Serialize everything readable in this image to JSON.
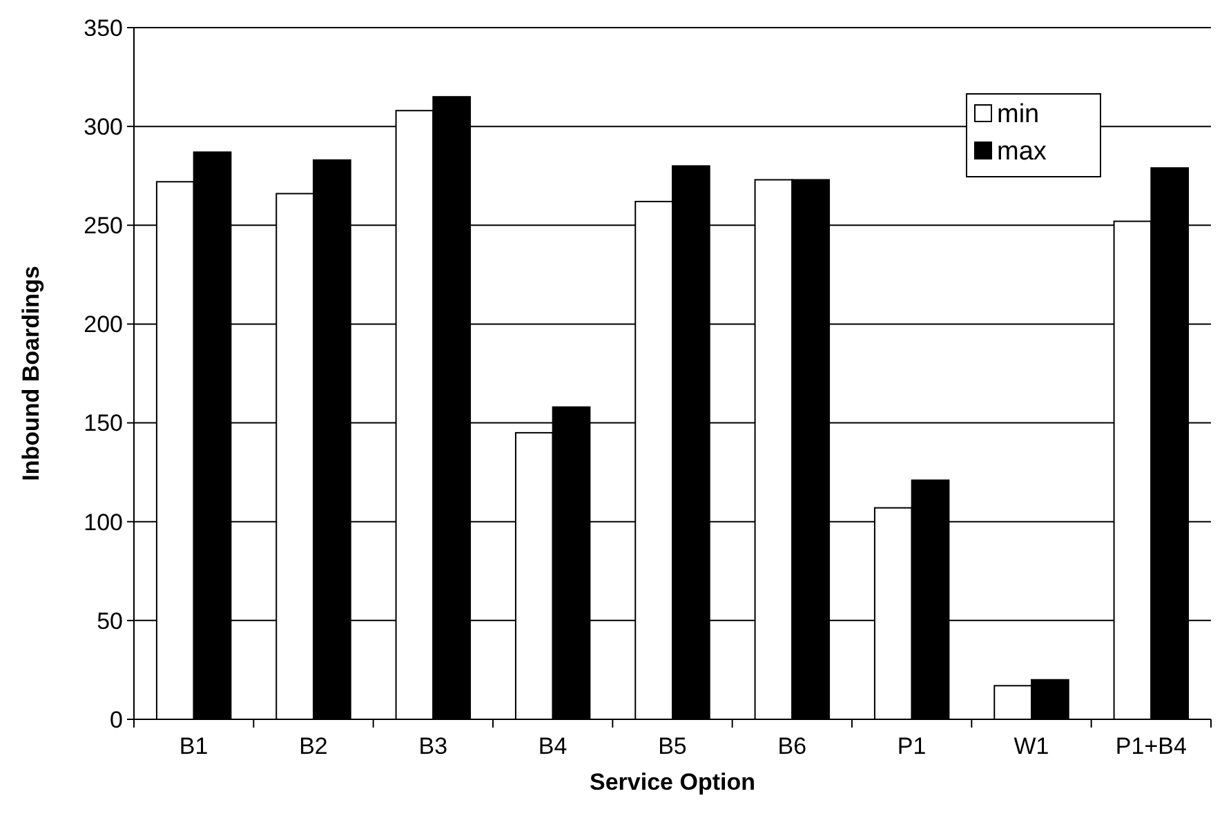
{
  "chart_data": {
    "type": "bar",
    "xlabel": "Service Option",
    "ylabel": "Inbound Boardings",
    "categories": [
      "B1",
      "B2",
      "B3",
      "B4",
      "B5",
      "B6",
      "P1",
      "W1",
      "P1+B4"
    ],
    "series": [
      {
        "name": "min",
        "color": "#ffffff",
        "values": [
          272,
          266,
          308,
          145,
          262,
          273,
          107,
          17,
          252
        ]
      },
      {
        "name": "max",
        "color": "#000000",
        "values": [
          287,
          283,
          315,
          158,
          280,
          273,
          121,
          20,
          279
        ]
      }
    ],
    "ylim": [
      0,
      350
    ],
    "yticks": [
      0,
      50,
      100,
      150,
      200,
      250,
      300,
      350
    ],
    "grid": "y",
    "legend": "top right"
  }
}
